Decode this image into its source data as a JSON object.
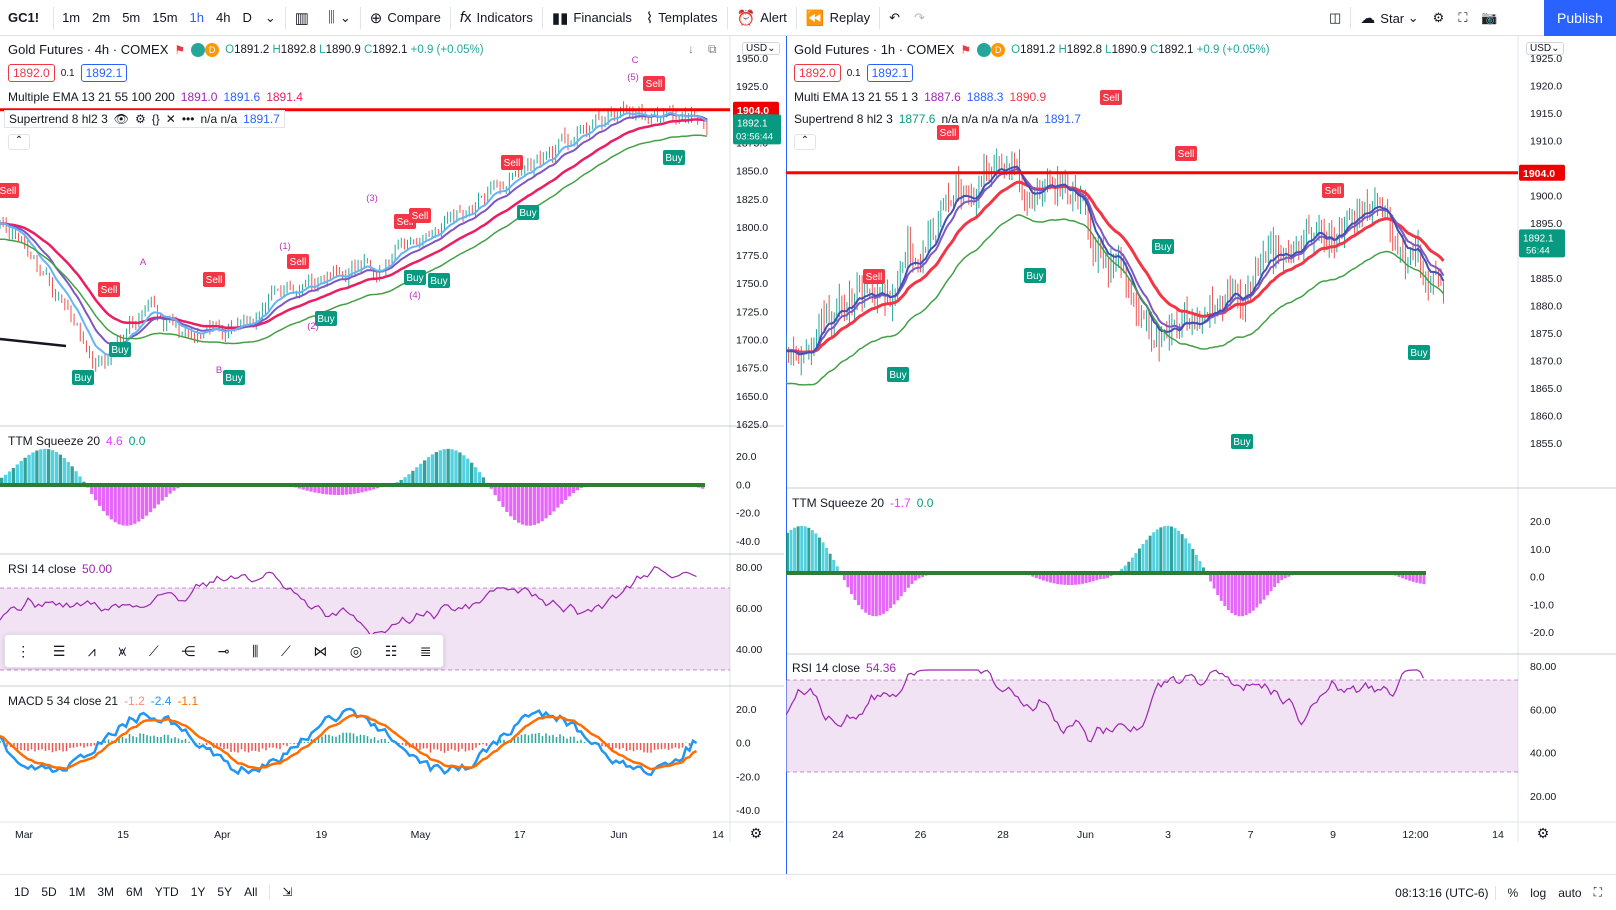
{
  "topbar": {
    "symbol": "GC1!",
    "intervals": [
      "1m",
      "2m",
      "5m",
      "15m",
      "1h",
      "4h",
      "D"
    ],
    "active_interval": "1h",
    "compare": "Compare",
    "indicators": "Indicators",
    "financials": "Financials",
    "templates": "Templates",
    "alert": "Alert",
    "replay": "Replay",
    "layout_name": "Star",
    "publish": "Publish"
  },
  "left": {
    "title": "Gold Futures · 4h · COMEX",
    "ohlc": {
      "o": "1891.2",
      "h": "1892.8",
      "l": "1890.9",
      "c": "1892.1",
      "chg": "+0.9 (+0.05%)"
    },
    "bid": "1892.0",
    "spread": "0.1",
    "ask": "1892.1",
    "currency": "USD",
    "ema_legend": {
      "name": "Multiple EMA 13 21 55 100 200",
      "v1": "1891.0",
      "v2": "1891.6",
      "v3": "1891.4"
    },
    "supertrend_legend": {
      "name": "Supertrend 8 hl2 3",
      "vals": "n/a n/a",
      "v": "1891.7"
    },
    "resistance": "1904.0",
    "last_price": "1892.1",
    "countdown": "03:56:44",
    "price_ticks": [
      "1950.0",
      "1925.0",
      "1900.0",
      "1875.0",
      "1850.0",
      "1825.0",
      "1800.0",
      "1775.0",
      "1750.0",
      "1725.0",
      "1700.0",
      "1675.0",
      "1650.0",
      "1625.0"
    ],
    "ttm": {
      "name": "TTM Squeeze 20",
      "v1": "4.6",
      "v2": "0.0",
      "ticks": [
        "20.0",
        "0.0",
        "-20.0",
        "-40.0"
      ]
    },
    "rsi": {
      "name": "RSI 14 close",
      "v": "50.00",
      "ticks": [
        "80.00",
        "60.00",
        "40.00"
      ]
    },
    "macd": {
      "name": "MACD 5 34 close 21",
      "v1": "-1.2",
      "v2": "-2.4",
      "v3": "-1.1",
      "ticks": [
        "20.0",
        "0.0",
        "-20.0",
        "-40.0"
      ]
    },
    "time_ticks": [
      "Mar",
      "15",
      "Apr",
      "19",
      "May",
      "17",
      "Jun",
      "14"
    ],
    "signals": [
      {
        "text": "Sell",
        "kind": "sell"
      },
      {
        "text": "Buy",
        "kind": "buy"
      },
      {
        "text": "Sell",
        "kind": "sell"
      },
      {
        "text": "Buy",
        "kind": "buy"
      },
      {
        "text": "Sell",
        "kind": "sell"
      },
      {
        "text": "Buy",
        "kind": "buy"
      },
      {
        "text": "Sell",
        "kind": "sell"
      },
      {
        "text": "Buy",
        "kind": "buy"
      },
      {
        "text": "Sell",
        "kind": "sell"
      },
      {
        "text": "Sell",
        "kind": "sell"
      },
      {
        "text": "Buy",
        "kind": "buy"
      },
      {
        "text": "Buy",
        "kind": "buy"
      },
      {
        "text": "Sell",
        "kind": "sell"
      },
      {
        "text": "Buy",
        "kind": "buy"
      },
      {
        "text": "Sell",
        "kind": "sell"
      },
      {
        "text": "Buy",
        "kind": "buy"
      }
    ],
    "wave_labels": [
      "A",
      "B",
      "C",
      "(1)",
      "(2)",
      "(3)",
      "(4)",
      "(5)"
    ]
  },
  "right": {
    "title": "Gold Futures · 1h · COMEX",
    "ohlc": {
      "o": "1891.2",
      "h": "1892.8",
      "l": "1890.9",
      "c": "1892.1",
      "chg": "+0.9 (+0.05%)"
    },
    "bid": "1892.0",
    "spread": "0.1",
    "ask": "1892.1",
    "currency": "USD",
    "ema_legend": {
      "name": "Multi EMA 13 21 55 1 3",
      "v1": "1887.6",
      "v2": "1888.3",
      "v3": "1890.9"
    },
    "supertrend_legend": {
      "name": "Supertrend 8 hl2 3",
      "v1": "1877.6",
      "vals": "n/a n/a n/a n/a n/a",
      "v": "1891.7"
    },
    "resistance": "1904.0",
    "last_price": "1892.1",
    "countdown": "56:44",
    "price_ticks": [
      "1925.0",
      "1920.0",
      "1915.0",
      "1910.0",
      "1905.0",
      "1900.0",
      "1895.0",
      "1890.0",
      "1885.0",
      "1880.0",
      "1875.0",
      "1870.0",
      "1865.0",
      "1860.0",
      "1855.0"
    ],
    "ttm": {
      "name": "TTM Squeeze 20",
      "v1": "-1.7",
      "v2": "0.0",
      "ticks": [
        "20.0",
        "10.0",
        "0.0",
        "-10.0",
        "-20.0"
      ]
    },
    "rsi": {
      "name": "RSI 14 close",
      "v": "54.36",
      "ticks": [
        "80.00",
        "60.00",
        "40.00",
        "20.00"
      ]
    },
    "time_ticks": [
      "24",
      "26",
      "28",
      "Jun",
      "3",
      "7",
      "9",
      "12:00",
      "14"
    ],
    "signals": [
      {
        "text": "Sell",
        "kind": "sell"
      },
      {
        "text": "Buy",
        "kind": "buy"
      },
      {
        "text": "Sell",
        "kind": "sell"
      },
      {
        "text": "Sell",
        "kind": "sell"
      },
      {
        "text": "Buy",
        "kind": "buy"
      },
      {
        "text": "Sell",
        "kind": "sell"
      },
      {
        "text": "Buy",
        "kind": "buy"
      },
      {
        "text": "Buy",
        "kind": "buy"
      },
      {
        "text": "Sell",
        "kind": "sell"
      },
      {
        "text": "Buy",
        "kind": "buy"
      }
    ]
  },
  "bottombar": {
    "ranges": [
      "1D",
      "5D",
      "1M",
      "3M",
      "6M",
      "YTD",
      "1Y",
      "5Y",
      "All"
    ],
    "clock": "08:13:16 (UTC-6)",
    "percent": "%",
    "log": "log",
    "auto": "auto"
  },
  "colors": {
    "accent": "#2962ff",
    "sell": "#f23645",
    "buy": "#089981",
    "ema_pink": "#e91e63",
    "rsi_line": "#9c27b0",
    "macd_line": "#2196f3",
    "signal": "#ff6d00"
  }
}
